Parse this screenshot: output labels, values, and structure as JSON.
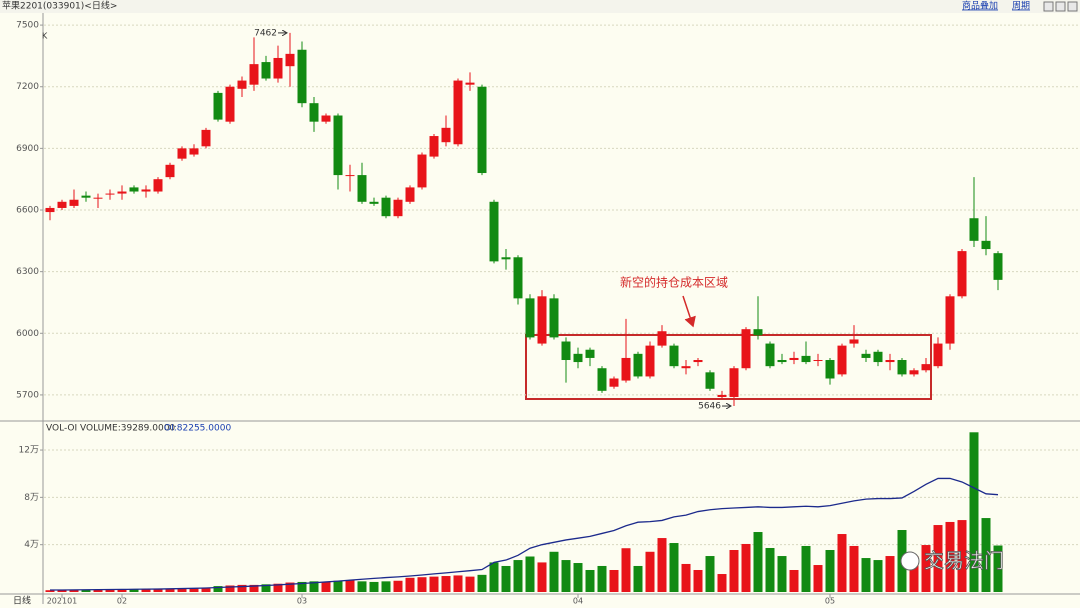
{
  "chart_data": {
    "type": "candlestick",
    "title": "苹果2201(033901)<日线>",
    "toolbar": [
      "商品叠加",
      "周期"
    ],
    "y_label": "K",
    "period_label": "日线",
    "up_color": "#e8141a",
    "down_color": "#128a12",
    "oi_color": "#1c2a8c",
    "grid": true,
    "ylim": [
      5578,
      7554
    ],
    "yticks": [
      5700,
      6000,
      6300,
      6600,
      6900,
      7200,
      7500
    ],
    "x_labels": [
      {
        "value": 1,
        "label": "202101"
      },
      {
        "value": 6,
        "label": "02"
      },
      {
        "value": 21,
        "label": "03"
      },
      {
        "value": 44,
        "label": "04"
      },
      {
        "value": 65,
        "label": "05"
      }
    ],
    "open": [
      6590,
      6610,
      6620,
      6670,
      6660,
      6680,
      6680,
      6710,
      6690,
      6690,
      6760,
      6850,
      6870,
      6910,
      7170,
      7030,
      7190,
      7210,
      7320,
      7240,
      7300,
      7380,
      7120,
      7030,
      7060,
      6770,
      6770,
      6640,
      6660,
      6570,
      6640,
      6710,
      6860,
      6930,
      6920,
      7210,
      7200,
      6640,
      6370,
      6370,
      6170,
      5950,
      6170,
      5960,
      5900,
      5920,
      5830,
      5740,
      5770,
      5900,
      5790,
      5940,
      5940,
      5830,
      5860,
      5810,
      5690,
      5690,
      5830,
      6020,
      5950,
      5870,
      5870,
      5890,
      5870,
      5870,
      5800,
      5950,
      5900,
      5910,
      5860,
      5870,
      5800,
      5820,
      5840,
      5950,
      6180,
      6560,
      6450,
      6390
    ],
    "high": [
      6620,
      6650,
      6700,
      6690,
      6680,
      6700,
      6720,
      6720,
      6720,
      6760,
      6830,
      6910,
      6920,
      7000,
      7180,
      7210,
      7250,
      7440,
      7350,
      7400,
      7462,
      7420,
      7150,
      7070,
      7070,
      6820,
      6830,
      6660,
      6670,
      6660,
      6720,
      6880,
      6970,
      7060,
      7240,
      7270,
      7210,
      6650,
      6410,
      6380,
      6190,
      6210,
      6190,
      5980,
      5930,
      5930,
      5840,
      5790,
      6070,
      5910,
      5960,
      6040,
      5950,
      5870,
      5880,
      5820,
      5720,
      5840,
      6030,
      6180,
      5960,
      5900,
      5910,
      5960,
      5900,
      5880,
      5950,
      6040,
      5920,
      5920,
      5900,
      5880,
      5830,
      5880,
      5980,
      6190,
      6410,
      6760,
      6570,
      6400
    ],
    "low": [
      6550,
      6600,
      6610,
      6640,
      6610,
      6650,
      6650,
      6680,
      6660,
      6680,
      6750,
      6840,
      6860,
      6900,
      7030,
      7020,
      7150,
      7180,
      7230,
      7220,
      7200,
      7100,
      6980,
      7020,
      6700,
      6690,
      6630,
      6620,
      6560,
      6560,
      6630,
      6700,
      6850,
      6910,
      6910,
      7180,
      6770,
      6340,
      6310,
      6140,
      5970,
      5940,
      5970,
      5760,
      5830,
      5840,
      5710,
      5730,
      5760,
      5780,
      5780,
      5930,
      5830,
      5800,
      5840,
      5720,
      5680,
      5646,
      5820,
      5970,
      5830,
      5850,
      5850,
      5850,
      5840,
      5750,
      5790,
      5930,
      5860,
      5840,
      5820,
      5790,
      5790,
      5810,
      5830,
      5920,
      6170,
      6420,
      6380,
      6210
    ],
    "close": [
      6610,
      6640,
      6650,
      6660,
      6660,
      6680,
      6690,
      6690,
      6700,
      6750,
      6820,
      6900,
      6900,
      6990,
      7040,
      7200,
      7230,
      7310,
      7240,
      7340,
      7360,
      7120,
      7030,
      7060,
      6770,
      6770,
      6640,
      6630,
      6570,
      6650,
      6710,
      6870,
      6960,
      7000,
      7230,
      7220,
      6780,
      6350,
      6360,
      6170,
      5980,
      6180,
      5980,
      5870,
      5860,
      5880,
      5720,
      5780,
      5880,
      5790,
      5940,
      6010,
      5840,
      5840,
      5870,
      5730,
      5700,
      5830,
      6020,
      5990,
      5840,
      5860,
      5880,
      5860,
      5870,
      5780,
      5940,
      5970,
      5880,
      5860,
      5870,
      5800,
      5820,
      5850,
      5950,
      6180,
      6400,
      6450,
      6410,
      6260
    ],
    "volume_title": "VOL-OI VOLUME:39289.0000",
    "oi_title": "OI:82255.0000",
    "volume_ylim": [
      0,
      143700
    ],
    "volume_yticks": [
      {
        "value": 40000,
        "label": "4万"
      },
      {
        "value": 80000,
        "label": "8万"
      },
      {
        "value": 120000,
        "label": "12万"
      }
    ],
    "volume": [
      1500,
      1600,
      1700,
      1800,
      1800,
      1900,
      2000,
      2100,
      2200,
      2300,
      2500,
      2700,
      2900,
      3100,
      5000,
      5500,
      6000,
      6000,
      6500,
      7000,
      8000,
      8500,
      9000,
      8500,
      9500,
      10000,
      9000,
      8500,
      9000,
      9500,
      12000,
      12500,
      13000,
      13500,
      14000,
      13000,
      14500,
      25000,
      22000,
      27000,
      30000,
      25000,
      34000,
      27000,
      24500,
      18600,
      22000,
      18600,
      37000,
      22000,
      34000,
      45600,
      41400,
      23700,
      18600,
      30400,
      15200,
      35500,
      40600,
      50700,
      37200,
      30400,
      18600,
      38900,
      22800,
      35500,
      49000,
      38900,
      28700,
      27000,
      30400,
      52400,
      30400,
      39700,
      56600,
      59200,
      60800,
      135000,
      62500,
      39289
    ],
    "oi": [
      1700,
      1700,
      1800,
      1900,
      2000,
      2100,
      2200,
      2300,
      2400,
      2500,
      2700,
      2900,
      3100,
      3400,
      3800,
      4200,
      4600,
      5000,
      5500,
      6000,
      6600,
      7200,
      7800,
      8500,
      9200,
      10000,
      10800,
      11500,
      12200,
      12800,
      13500,
      14400,
      15300,
      16200,
      17100,
      18000,
      19000,
      25000,
      27000,
      31000,
      37000,
      40000,
      42000,
      44000,
      45500,
      47000,
      49500,
      52000,
      56000,
      59000,
      59500,
      60500,
      63500,
      65000,
      68000,
      69500,
      70500,
      71000,
      71500,
      72000,
      71500,
      71500,
      72000,
      72500,
      72000,
      73000,
      75000,
      77000,
      78500,
      79000,
      79000,
      79500,
      85000,
      91000,
      96000,
      96000,
      93000,
      88000,
      83000,
      82255
    ],
    "annotation": "新空的持仓成本区域",
    "watermark": "交易法门"
  }
}
